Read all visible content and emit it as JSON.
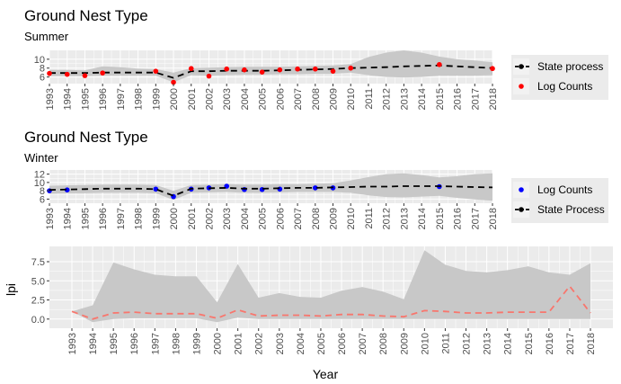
{
  "chart_data": [
    {
      "type": "line",
      "title": "Ground Nest Type",
      "subtitle": "Summer",
      "x": [
        1993,
        1994,
        1995,
        1996,
        1997,
        1998,
        1999,
        2000,
        2001,
        2002,
        2003,
        2004,
        2005,
        2006,
        2007,
        2008,
        2009,
        2010,
        2011,
        2012,
        2013,
        2014,
        2015,
        2016,
        2017,
        2018
      ],
      "ylim": [
        4.5,
        12
      ],
      "yticks": [
        6,
        8,
        10
      ],
      "series": [
        {
          "name": "State process",
          "color": "#000000",
          "style": "dashed-points",
          "values": [
            6.9,
            6.9,
            6.9,
            7.0,
            7.0,
            7.0,
            7.0,
            5.8,
            7.3,
            7.3,
            7.4,
            7.4,
            7.4,
            7.5,
            7.6,
            7.7,
            7.8,
            8.0,
            8.1,
            8.2,
            8.4,
            8.5,
            8.6,
            8.4,
            8.2,
            8.0
          ]
        },
        {
          "name": "Log Counts",
          "color": "#ff0000",
          "style": "points",
          "values": [
            6.8,
            6.6,
            6.3,
            6.9,
            null,
            null,
            7.3,
            4.8,
            7.9,
            6.2,
            7.8,
            7.6,
            7.1,
            7.6,
            7.8,
            7.8,
            7.3,
            8.0,
            null,
            null,
            null,
            null,
            8.8,
            null,
            null,
            7.9
          ]
        },
        {
          "name": "band-upper",
          "values": [
            7.6,
            7.6,
            7.5,
            8.4,
            8.2,
            7.9,
            7.8,
            7.0,
            8.0,
            8.1,
            8.2,
            8.3,
            8.3,
            8.3,
            8.4,
            8.5,
            8.6,
            8.9,
            10.5,
            11.5,
            12.0,
            11.5,
            10.6,
            10.0,
            9.7,
            9.3
          ]
        },
        {
          "name": "band-lower",
          "values": [
            6.2,
            6.2,
            6.2,
            6.3,
            6.3,
            6.3,
            6.3,
            4.8,
            6.4,
            6.3,
            6.4,
            6.5,
            6.5,
            6.6,
            6.6,
            6.7,
            6.7,
            7.0,
            6.4,
            6.0,
            5.9,
            6.0,
            6.3,
            6.3,
            6.3,
            6.4
          ]
        }
      ],
      "legend_position": "right"
    },
    {
      "type": "line",
      "title": "Ground Nest Type",
      "subtitle": "Winter",
      "x": [
        1993,
        1994,
        1995,
        1996,
        1997,
        1998,
        1999,
        2000,
        2001,
        2002,
        2003,
        2004,
        2005,
        2006,
        2007,
        2008,
        2009,
        2010,
        2011,
        2012,
        2013,
        2014,
        2015,
        2016,
        2017,
        2018
      ],
      "ylim": [
        5,
        13
      ],
      "yticks": [
        6,
        8,
        10,
        12
      ],
      "series": [
        {
          "name": "Log Counts",
          "color": "#0000ff",
          "style": "points",
          "values": [
            8.0,
            8.2,
            null,
            null,
            null,
            null,
            8.4,
            6.6,
            8.4,
            8.7,
            9.1,
            8.3,
            8.3,
            8.4,
            null,
            8.7,
            8.7,
            null,
            null,
            null,
            null,
            null,
            9.0,
            null,
            null,
            null
          ]
        },
        {
          "name": "State Process",
          "color": "#000000",
          "style": "dashed-points",
          "values": [
            8.2,
            8.3,
            8.4,
            8.5,
            8.5,
            8.5,
            8.4,
            6.8,
            8.5,
            8.6,
            8.7,
            8.5,
            8.5,
            8.6,
            8.7,
            8.7,
            8.8,
            8.9,
            9.0,
            9.0,
            9.1,
            9.1,
            9.1,
            9.0,
            8.9,
            8.8
          ]
        },
        {
          "name": "band-upper",
          "values": [
            9.2,
            9.3,
            9.4,
            9.5,
            9.5,
            9.5,
            9.4,
            8.0,
            9.4,
            9.5,
            9.6,
            9.5,
            9.5,
            9.6,
            9.6,
            9.7,
            9.8,
            10.5,
            11.3,
            12.0,
            12.2,
            11.8,
            11.2,
            11.5,
            12.0,
            12.2
          ]
        },
        {
          "name": "band-lower",
          "values": [
            7.3,
            7.4,
            7.4,
            7.5,
            7.5,
            7.5,
            7.4,
            5.8,
            7.5,
            7.6,
            7.7,
            7.5,
            7.5,
            7.6,
            7.7,
            7.7,
            7.7,
            7.5,
            6.9,
            6.5,
            6.4,
            6.6,
            6.8,
            6.3,
            5.9,
            5.6
          ]
        }
      ],
      "legend_position": "right"
    },
    {
      "type": "line",
      "title": "",
      "x": [
        1993,
        1994,
        1995,
        1996,
        1997,
        1998,
        1999,
        2000,
        2001,
        2002,
        2003,
        2004,
        2005,
        2006,
        2007,
        2008,
        2009,
        2010,
        2011,
        2012,
        2013,
        2014,
        2015,
        2016,
        2017,
        2018
      ],
      "xlabel": "Year",
      "ylabel": "lpi",
      "ylim": [
        -1.2,
        9.5
      ],
      "yticks": [
        0.0,
        2.5,
        5.0,
        7.5
      ],
      "series": [
        {
          "name": "lpi",
          "color": "#f8766d",
          "style": "dashed",
          "values": [
            1.0,
            0.0,
            0.8,
            0.9,
            0.7,
            0.7,
            0.7,
            0.1,
            1.2,
            0.4,
            0.5,
            0.5,
            0.4,
            0.6,
            0.6,
            0.4,
            0.3,
            1.1,
            1.0,
            0.8,
            0.8,
            0.9,
            0.9,
            0.9,
            4.3,
            0.8
          ]
        },
        {
          "name": "band-upper",
          "values": [
            1.0,
            1.8,
            7.4,
            6.5,
            5.8,
            5.6,
            5.6,
            2.2,
            7.2,
            2.8,
            3.4,
            2.9,
            2.8,
            3.7,
            4.2,
            3.6,
            2.6,
            9.0,
            7.1,
            6.3,
            6.1,
            6.4,
            6.9,
            6.1,
            5.8,
            7.3
          ]
        },
        {
          "name": "band-lower",
          "values": [
            1.0,
            -0.4,
            0.0,
            0.1,
            0.1,
            0.1,
            0.1,
            -0.4,
            0.2,
            0.0,
            0.0,
            0.0,
            0.0,
            0.0,
            0.0,
            0.0,
            0.0,
            0.0,
            0.0,
            0.0,
            0.0,
            0.0,
            0.0,
            0.0,
            0.0,
            0.0
          ]
        }
      ]
    }
  ]
}
